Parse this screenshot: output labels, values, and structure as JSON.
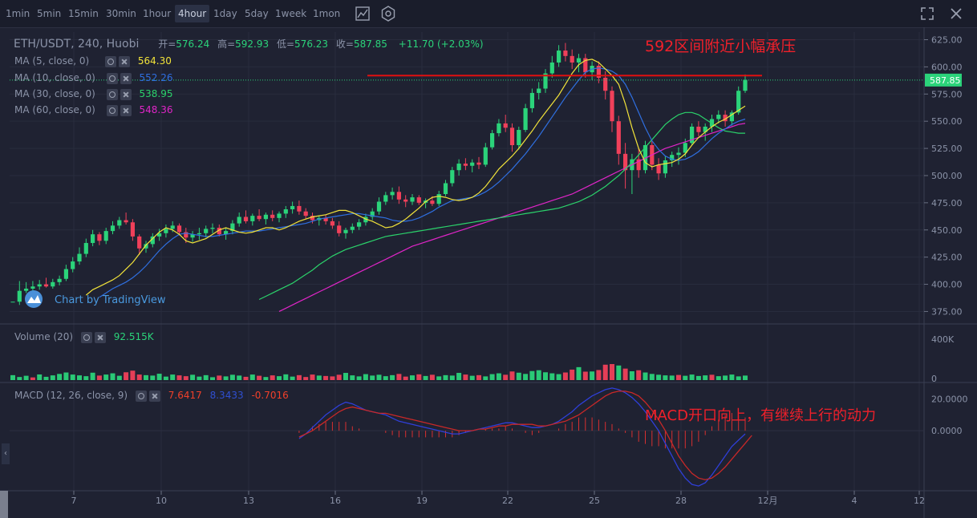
{
  "toolbar": {
    "timeframes": [
      "1min",
      "5min",
      "15min",
      "30min",
      "1hour",
      "4hour",
      "1day",
      "5day",
      "1week",
      "1mon"
    ],
    "active_timeframe": "4hour",
    "icons": [
      "indicator-icon",
      "settings-icon",
      "fullscreen-icon",
      "close-icon"
    ]
  },
  "header": {
    "symbol": "ETH/USDT, 240, Huobi",
    "open_label": "开=",
    "open": "576.24",
    "high_label": "高=",
    "high": "592.93",
    "low_label": "低=",
    "low": "576.23",
    "close_label": "收=",
    "close": "587.85",
    "change": "+11.70 (+2.03%)"
  },
  "ma": [
    {
      "label": "MA (5, close, 0)",
      "value": "564.30",
      "color": "#f2e33a"
    },
    {
      "label": "MA (10, close, 0)",
      "value": "552.26",
      "color": "#2f6fe0"
    },
    {
      "label": "MA (30, close, 0)",
      "value": "538.95",
      "color": "#2bd36b"
    },
    {
      "label": "MA (60, close, 0)",
      "value": "548.36",
      "color": "#e025c8"
    }
  ],
  "watermark": "Chart by TradingView",
  "annotations": {
    "resistance": "592区间附近小幅承压",
    "macd_note": "MACD开口向上，有继续上行的动力"
  },
  "volume": {
    "label": "Volume (20)",
    "value": "92.515K"
  },
  "macd": {
    "label": "MACD (12, 26, close, 9)",
    "v1": "7.6417",
    "v2": "8.3433",
    "v3": "-0.7016"
  },
  "price_axis": {
    "ticks": [
      "625.00",
      "600.00",
      "575.00",
      "550.00",
      "525.00",
      "500.00",
      "475.00",
      "450.00",
      "425.00",
      "400.00",
      "375.00"
    ],
    "last": "587.85"
  },
  "volume_axis": {
    "ticks": [
      "400K",
      "0"
    ]
  },
  "macd_axis": {
    "ticks": [
      "20.0000",
      "0.0000"
    ]
  },
  "time_axis": {
    "ticks": [
      "7",
      "10",
      "13",
      "16",
      "19",
      "22",
      "25",
      "28",
      "12月",
      "4",
      "12"
    ]
  },
  "colors": {
    "up": "#2bd37a",
    "down": "#f0405a",
    "bg": "#1f2232",
    "resistance": "#e01010",
    "annotation": "#f0202a"
  },
  "chart_data": {
    "type": "candlestick",
    "resistance_level": 592,
    "ylim": [
      365,
      632
    ],
    "volume_ylim": [
      0,
      500
    ],
    "macd_ylim": [
      -38,
      30
    ],
    "candles": [
      [
        384,
        384,
        384,
        384
      ],
      [
        384,
        403,
        381,
        394
      ],
      [
        394,
        402,
        392,
        396
      ],
      [
        396,
        403,
        393,
        398
      ],
      [
        398,
        404,
        395,
        400
      ],
      [
        400,
        406,
        397,
        398
      ],
      [
        398,
        405,
        396,
        402
      ],
      [
        402,
        408,
        399,
        405
      ],
      [
        405,
        418,
        403,
        414
      ],
      [
        414,
        425,
        411,
        421
      ],
      [
        421,
        434,
        418,
        428
      ],
      [
        428,
        442,
        425,
        438
      ],
      [
        438,
        450,
        435,
        446
      ],
      [
        446,
        448,
        436,
        440
      ],
      [
        440,
        452,
        437,
        449
      ],
      [
        449,
        458,
        446,
        454
      ],
      [
        454,
        462,
        451,
        459
      ],
      [
        459,
        466,
        455,
        457
      ],
      [
        457,
        460,
        440,
        444
      ],
      [
        444,
        446,
        427,
        433
      ],
      [
        433,
        440,
        429,
        437
      ],
      [
        437,
        447,
        434,
        444
      ],
      [
        444,
        451,
        440,
        447
      ],
      [
        447,
        455,
        443,
        451
      ],
      [
        451,
        458,
        448,
        454
      ],
      [
        454,
        456,
        445,
        448
      ],
      [
        448,
        452,
        438,
        443
      ],
      [
        443,
        449,
        439,
        446
      ],
      [
        446,
        452,
        441,
        447
      ],
      [
        447,
        454,
        443,
        451
      ],
      [
        451,
        456,
        447,
        452
      ],
      [
        452,
        455,
        444,
        446
      ],
      [
        446,
        452,
        441,
        449
      ],
      [
        449,
        459,
        446,
        456
      ],
      [
        456,
        466,
        453,
        462
      ],
      [
        462,
        468,
        456,
        458
      ],
      [
        458,
        465,
        454,
        463
      ],
      [
        463,
        469,
        458,
        460
      ],
      [
        460,
        466,
        455,
        464
      ],
      [
        464,
        468,
        458,
        461
      ],
      [
        461,
        467,
        457,
        465
      ],
      [
        465,
        472,
        461,
        469
      ],
      [
        469,
        476,
        465,
        472
      ],
      [
        472,
        477,
        464,
        467
      ],
      [
        467,
        470,
        460,
        463
      ],
      [
        463,
        466,
        456,
        459
      ],
      [
        459,
        463,
        454,
        461
      ],
      [
        461,
        464,
        455,
        458
      ],
      [
        458,
        461,
        451,
        454
      ],
      [
        454,
        458,
        444,
        447
      ],
      [
        447,
        452,
        442,
        450
      ],
      [
        450,
        456,
        447,
        453
      ],
      [
        453,
        460,
        450,
        457
      ],
      [
        457,
        465,
        454,
        462
      ],
      [
        462,
        470,
        459,
        467
      ],
      [
        467,
        480,
        464,
        476
      ],
      [
        476,
        485,
        473,
        482
      ],
      [
        482,
        489,
        478,
        485
      ],
      [
        485,
        490,
        474,
        478
      ],
      [
        478,
        482,
        471,
        476
      ],
      [
        476,
        483,
        473,
        480
      ],
      [
        480,
        482,
        473,
        475
      ],
      [
        475,
        479,
        470,
        477
      ],
      [
        477,
        481,
        472,
        474
      ],
      [
        474,
        486,
        472,
        483
      ],
      [
        483,
        496,
        481,
        493
      ],
      [
        493,
        508,
        490,
        505
      ],
      [
        505,
        515,
        500,
        511
      ],
      [
        511,
        516,
        505,
        509
      ],
      [
        509,
        515,
        503,
        512
      ],
      [
        512,
        517,
        506,
        510
      ],
      [
        510,
        530,
        508,
        526
      ],
      [
        526,
        542,
        524,
        539
      ],
      [
        539,
        552,
        536,
        548
      ],
      [
        548,
        556,
        540,
        544
      ],
      [
        544,
        548,
        522,
        528
      ],
      [
        528,
        545,
        524,
        542
      ],
      [
        542,
        566,
        540,
        562
      ],
      [
        562,
        580,
        558,
        576
      ],
      [
        576,
        586,
        570,
        580
      ],
      [
        580,
        598,
        576,
        594
      ],
      [
        594,
        610,
        590,
        604
      ],
      [
        604,
        620,
        600,
        615
      ],
      [
        615,
        622,
        605,
        610
      ],
      [
        610,
        616,
        598,
        604
      ],
      [
        604,
        612,
        595,
        608
      ],
      [
        608,
        612,
        590,
        595
      ],
      [
        595,
        605,
        588,
        601
      ],
      [
        601,
        605,
        585,
        590
      ],
      [
        590,
        596,
        570,
        578
      ],
      [
        578,
        582,
        540,
        550
      ],
      [
        550,
        555,
        510,
        520
      ],
      [
        520,
        530,
        488,
        505
      ],
      [
        505,
        520,
        483,
        515
      ],
      [
        515,
        525,
        498,
        505
      ],
      [
        505,
        532,
        502,
        528
      ],
      [
        528,
        532,
        505,
        510
      ],
      [
        510,
        516,
        496,
        502
      ],
      [
        502,
        518,
        498,
        514
      ],
      [
        514,
        522,
        508,
        519
      ],
      [
        519,
        526,
        510,
        521
      ],
      [
        521,
        534,
        517,
        530
      ],
      [
        530,
        548,
        528,
        545
      ],
      [
        545,
        550,
        536,
        540
      ],
      [
        540,
        548,
        532,
        545
      ],
      [
        545,
        556,
        540,
        552
      ],
      [
        552,
        560,
        548,
        556
      ],
      [
        556,
        560,
        545,
        550
      ],
      [
        550,
        560,
        546,
        558
      ],
      [
        558,
        582,
        556,
        578
      ],
      [
        578,
        593,
        576,
        588
      ]
    ],
    "volume": [
      48,
      30,
      42,
      26,
      55,
      32,
      46,
      60,
      74,
      54,
      46,
      38,
      72,
      44,
      54,
      66,
      42,
      76,
      92,
      54,
      48,
      44,
      62,
      34,
      54,
      46,
      38,
      52,
      34,
      48,
      28,
      44,
      36,
      52,
      44,
      32,
      54,
      42,
      30,
      46,
      38,
      56,
      34,
      48,
      30,
      54,
      44,
      40,
      36,
      52,
      70,
      46,
      36,
      58,
      44,
      52,
      38,
      48,
      60,
      34,
      46,
      56,
      40,
      52,
      36,
      48,
      44,
      70,
      54,
      42,
      48,
      36,
      58,
      66,
      52,
      84,
      72,
      60,
      88,
      96,
      76,
      66,
      58,
      74,
      102,
      126,
      82,
      84,
      98,
      150,
      156,
      142,
      112,
      86,
      96,
      74,
      60,
      52,
      46,
      44,
      50,
      42,
      54,
      40,
      46,
      52,
      38,
      44,
      54,
      36,
      44
    ],
    "volume_up": [
      true,
      true,
      true,
      false,
      true,
      true,
      true,
      true,
      true,
      true,
      true,
      true,
      true,
      false,
      true,
      true,
      true,
      false,
      false,
      false,
      true,
      true,
      true,
      true,
      true,
      false,
      false,
      true,
      true,
      true,
      true,
      false,
      true,
      true,
      true,
      false,
      true,
      false,
      true,
      false,
      true,
      true,
      true,
      false,
      false,
      false,
      true,
      false,
      false,
      false,
      true,
      true,
      true,
      true,
      true,
      true,
      true,
      true,
      false,
      false,
      true,
      false,
      true,
      false,
      true,
      true,
      true,
      true,
      false,
      true,
      false,
      true,
      true,
      true,
      false,
      false,
      true,
      true,
      true,
      true,
      true,
      true,
      true,
      false,
      false,
      true,
      false,
      true,
      false,
      false,
      false,
      true,
      false,
      true,
      false,
      true,
      true,
      true,
      true,
      true,
      false,
      true,
      true,
      true,
      true,
      false,
      true,
      true,
      true,
      true,
      true
    ],
    "ma5": [
      390,
      395,
      398,
      401,
      404,
      408,
      414,
      420,
      428,
      436,
      442,
      448,
      452,
      450,
      446,
      440,
      438,
      440,
      442,
      446,
      450,
      452,
      450,
      448,
      447,
      448,
      450,
      452,
      452,
      450,
      452,
      455,
      458,
      460,
      462,
      463,
      464,
      466,
      468,
      468,
      466,
      463,
      460,
      458,
      455,
      452,
      453,
      456,
      460,
      465,
      470,
      476,
      480,
      481,
      480,
      478,
      477,
      478,
      480,
      484,
      490,
      498,
      506,
      512,
      518,
      525,
      533,
      541,
      550,
      558,
      566,
      574,
      584,
      594,
      602,
      606,
      607,
      604,
      598,
      592,
      584,
      566,
      544,
      525,
      512,
      508,
      510,
      511,
      512,
      515,
      520,
      528,
      535,
      540,
      545,
      549,
      552,
      556,
      560,
      564
    ],
    "ma10": [
      388,
      392,
      396,
      399,
      402,
      406,
      411,
      417,
      424,
      431,
      437,
      442,
      446,
      447,
      446,
      445,
      444,
      444,
      445,
      446,
      447,
      448,
      449,
      449,
      449,
      450,
      451,
      452,
      453,
      454,
      455,
      456,
      458,
      460,
      461,
      462,
      463,
      464,
      465,
      465,
      464,
      463,
      462,
      461,
      459,
      458,
      458,
      459,
      461,
      464,
      467,
      471,
      474,
      477,
      478,
      479,
      480,
      482,
      485,
      489,
      494,
      500,
      506,
      513,
      520,
      528,
      536,
      545,
      554,
      563,
      572,
      580,
      588,
      595,
      598,
      599,
      598,
      596,
      592,
      584,
      572,
      558,
      544,
      532,
      524,
      518,
      515,
      514,
      515,
      518,
      522,
      528,
      534,
      539,
      543,
      547,
      550,
      552
    ],
    "ma30": [
      386,
      389,
      392,
      395,
      398,
      401,
      405,
      409,
      413,
      418,
      422,
      426,
      429,
      432,
      434,
      436,
      438,
      440,
      442,
      444,
      445,
      446,
      447,
      448,
      449,
      450,
      451,
      452,
      453,
      454,
      455,
      456,
      457,
      458,
      459,
      460,
      461,
      462,
      463,
      464,
      465,
      466,
      467,
      468,
      469,
      470,
      472,
      474,
      476,
      479,
      482,
      486,
      490,
      495,
      500,
      506,
      512,
      519,
      526,
      533,
      540,
      547,
      552,
      556,
      558,
      558,
      556,
      552,
      548,
      544,
      541,
      540,
      539,
      539
    ],
    "ma60": [
      375,
      378,
      381,
      384,
      387,
      390,
      393,
      396,
      399,
      402,
      405,
      408,
      411,
      414,
      417,
      420,
      423,
      426,
      429,
      432,
      435,
      437,
      439,
      441,
      443,
      445,
      447,
      449,
      451,
      453,
      455,
      457,
      459,
      461,
      463,
      465,
      467,
      469,
      471,
      473,
      475,
      477,
      479,
      481,
      483,
      486,
      489,
      492,
      495,
      498,
      501,
      504,
      507,
      510,
      513,
      516,
      519,
      522,
      525,
      527,
      529,
      531,
      533,
      535,
      537,
      539,
      541,
      543,
      545,
      547,
      548
    ],
    "macd_dif": [
      -5,
      -2,
      2,
      6,
      10,
      13,
      16,
      18,
      17,
      15,
      13,
      12,
      11,
      10,
      8,
      6,
      5,
      4,
      3,
      2,
      1,
      0,
      -1,
      -2,
      -2,
      -1,
      0,
      1,
      2,
      3,
      4,
      5,
      5,
      4,
      3,
      2,
      2,
      3,
      4,
      6,
      9,
      12,
      16,
      19,
      22,
      24,
      26,
      27,
      26,
      24,
      21,
      17,
      12,
      6,
      0,
      -8,
      -16,
      -24,
      -30,
      -34,
      -35,
      -33,
      -28,
      -22,
      -16,
      -10,
      -6,
      -2
    ],
    "macd_dea": [
      -4,
      -2,
      0,
      3,
      6,
      9,
      12,
      14,
      15,
      14,
      13,
      12,
      11,
      11,
      10,
      9,
      8,
      7,
      6,
      5,
      4,
      3,
      2,
      1,
      0,
      0,
      0,
      1,
      1,
      2,
      3,
      3,
      4,
      4,
      4,
      4,
      3,
      3,
      4,
      5,
      6,
      8,
      10,
      13,
      16,
      19,
      22,
      24,
      25,
      25,
      24,
      22,
      18,
      13,
      7,
      0,
      -8,
      -16,
      -22,
      -27,
      -30,
      -31,
      -30,
      -27,
      -23,
      -18,
      -13,
      -8,
      -3
    ]
  }
}
